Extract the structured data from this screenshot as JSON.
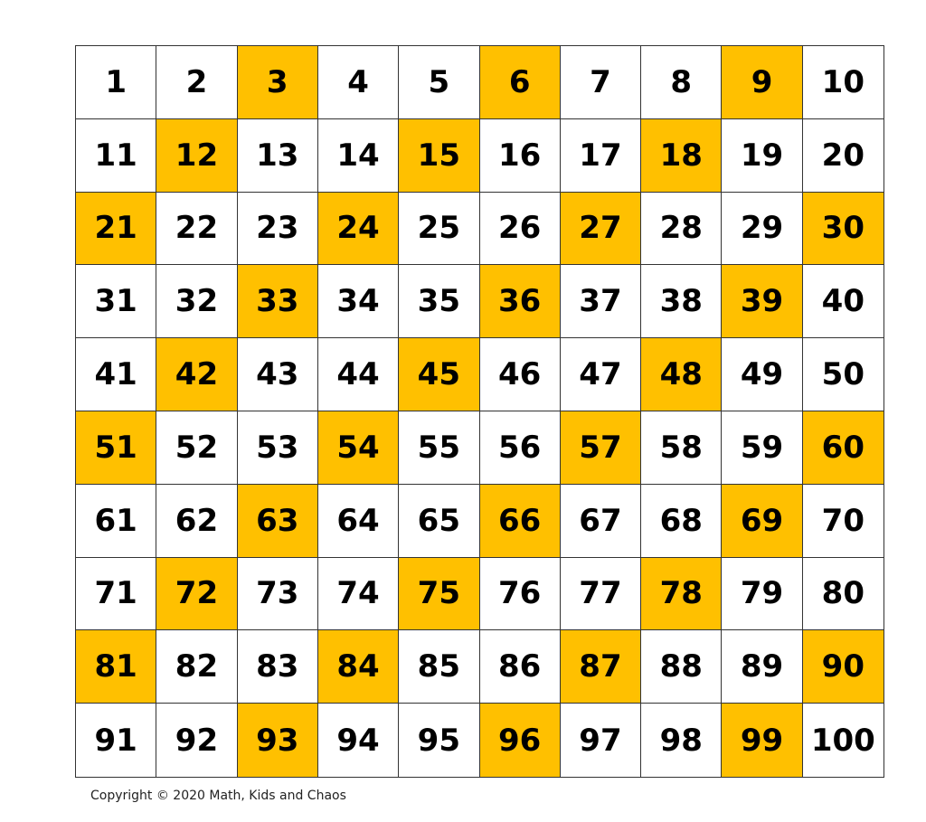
{
  "chart": {
    "numbers": [
      1,
      2,
      3,
      4,
      5,
      6,
      7,
      8,
      9,
      10,
      11,
      12,
      13,
      14,
      15,
      16,
      17,
      18,
      19,
      20,
      21,
      22,
      23,
      24,
      25,
      26,
      27,
      28,
      29,
      30,
      31,
      32,
      33,
      34,
      35,
      36,
      37,
      38,
      39,
      40,
      41,
      42,
      43,
      44,
      45,
      46,
      47,
      48,
      49,
      50,
      51,
      52,
      53,
      54,
      55,
      56,
      57,
      58,
      59,
      60,
      61,
      62,
      63,
      64,
      65,
      66,
      67,
      68,
      69,
      70,
      71,
      72,
      73,
      74,
      75,
      76,
      77,
      78,
      79,
      80,
      81,
      82,
      83,
      84,
      85,
      86,
      87,
      88,
      89,
      90,
      91,
      92,
      93,
      94,
      95,
      96,
      97,
      98,
      99,
      100
    ],
    "highlighted": [
      3,
      6,
      9,
      12,
      15,
      18,
      21,
      24,
      27,
      30,
      33,
      36,
      39,
      42,
      45,
      48,
      51,
      54,
      57,
      60,
      63,
      66,
      69,
      72,
      75,
      78,
      81,
      84,
      87,
      90,
      93,
      96,
      99
    ],
    "highlight_color": "#FFC000",
    "base_color": "#FFFFFF"
  },
  "footer": {
    "copyright": "Copyright © 2020 Math, Kids and Chaos"
  }
}
